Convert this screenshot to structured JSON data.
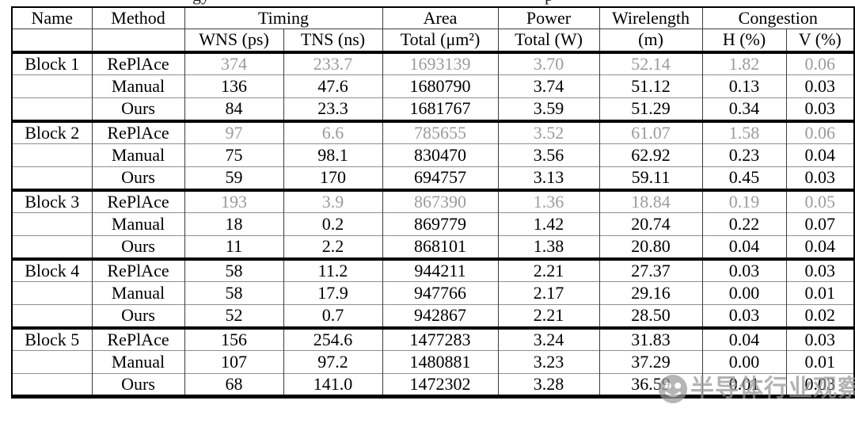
{
  "caption_fragments": {
    "left": "gy",
    "right": "p"
  },
  "watermark": {
    "text": "半导体行业观察",
    "logo": "panda-badge",
    "color": "#979797"
  },
  "colors": {
    "muted_text": "#9b9b9b",
    "rule_thick": "#000000",
    "rule_thin": "#8f8f8f"
  },
  "table": {
    "header": {
      "name": "Name",
      "method": "Method",
      "timing": "Timing",
      "area": "Area",
      "power": "Power",
      "wirelength": "Wirelength",
      "congestion": "Congestion",
      "wns": "WNS (ps)",
      "tns": "TNS (ns)",
      "area_sub": "Total (μm²)",
      "power_sub": "Total (W)",
      "wirelength_sub": "(m)",
      "h": "H (%)",
      "v": "V (%)"
    },
    "blocks": [
      {
        "name": "Block 1",
        "rows": [
          {
            "method": "RePlAce",
            "muted": true,
            "wns": "374",
            "tns": "233.7",
            "area": "1693139",
            "power": "3.70",
            "wirelength": "52.14",
            "h": "1.82",
            "v": "0.06"
          },
          {
            "method": "Manual",
            "muted": false,
            "wns": "136",
            "tns": "47.6",
            "area": "1680790",
            "power": "3.74",
            "wirelength": "51.12",
            "h": "0.13",
            "v": "0.03"
          },
          {
            "method": "Ours",
            "muted": false,
            "wns": "84",
            "tns": "23.3",
            "area": "1681767",
            "power": "3.59",
            "wirelength": "51.29",
            "h": "0.34",
            "v": "0.03"
          }
        ]
      },
      {
        "name": "Block 2",
        "rows": [
          {
            "method": "RePlAce",
            "muted": true,
            "wns": "97",
            "tns": "6.6",
            "area": "785655",
            "power": "3.52",
            "wirelength": "61.07",
            "h": "1.58",
            "v": "0.06"
          },
          {
            "method": "Manual",
            "muted": false,
            "wns": "75",
            "tns": "98.1",
            "area": "830470",
            "power": "3.56",
            "wirelength": "62.92",
            "h": "0.23",
            "v": "0.04"
          },
          {
            "method": "Ours",
            "muted": false,
            "wns": "59",
            "tns": "170",
            "area": "694757",
            "power": "3.13",
            "wirelength": "59.11",
            "h": "0.45",
            "v": "0.03"
          }
        ]
      },
      {
        "name": "Block 3",
        "rows": [
          {
            "method": "RePlAce",
            "muted": true,
            "wns": "193",
            "tns": "3.9",
            "area": "867390",
            "power": "1.36",
            "wirelength": "18.84",
            "h": "0.19",
            "v": "0.05"
          },
          {
            "method": "Manual",
            "muted": false,
            "wns": "18",
            "tns": "0.2",
            "area": "869779",
            "power": "1.42",
            "wirelength": "20.74",
            "h": "0.22",
            "v": "0.07"
          },
          {
            "method": "Ours",
            "muted": false,
            "wns": "11",
            "tns": "2.2",
            "area": "868101",
            "power": "1.38",
            "wirelength": "20.80",
            "h": "0.04",
            "v": "0.04"
          }
        ]
      },
      {
        "name": "Block 4",
        "rows": [
          {
            "method": "RePlAce",
            "muted": false,
            "wns": "58",
            "tns": "11.2",
            "area": "944211",
            "power": "2.21",
            "wirelength": "27.37",
            "h": "0.03",
            "v": "0.03"
          },
          {
            "method": "Manual",
            "muted": false,
            "wns": "58",
            "tns": "17.9",
            "area": "947766",
            "power": "2.17",
            "wirelength": "29.16",
            "h": "0.00",
            "v": "0.01"
          },
          {
            "method": "Ours",
            "muted": false,
            "wns": "52",
            "tns": "0.7",
            "area": "942867",
            "power": "2.21",
            "wirelength": "28.50",
            "h": "0.03",
            "v": "0.02"
          }
        ]
      },
      {
        "name": "Block 5",
        "rows": [
          {
            "method": "RePlAce",
            "muted": false,
            "wns": "156",
            "tns": "254.6",
            "area": "1477283",
            "power": "3.24",
            "wirelength": "31.83",
            "h": "0.04",
            "v": "0.03"
          },
          {
            "method": "Manual",
            "muted": false,
            "wns": "107",
            "tns": "97.2",
            "area": "1480881",
            "power": "3.23",
            "wirelength": "37.29",
            "h": "0.00",
            "v": "0.01"
          },
          {
            "method": "Ours",
            "muted": false,
            "wns": "68",
            "tns": "141.0",
            "area": "1472302",
            "power": "3.28",
            "wirelength": "36.59",
            "h": "0.01",
            "v": "0.03"
          }
        ]
      }
    ]
  }
}
